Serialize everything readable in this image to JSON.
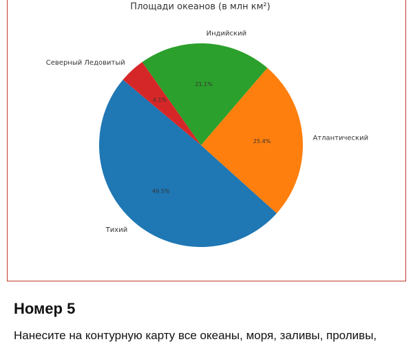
{
  "chart_data": {
    "type": "pie",
    "title": "Площади океанов (в млн км²)",
    "categories": [
      "Тихий",
      "Атлантический",
      "Индийский",
      "Северный Ледовитый"
    ],
    "values": [
      49.5,
      25.4,
      21.1,
      4.1
    ],
    "value_labels": [
      "49.5%",
      "25.4%",
      "21.1%",
      "4.1%"
    ],
    "colors": [
      "#1f77b4",
      "#ff7f0e",
      "#2ca02c",
      "#d62728"
    ],
    "start_angle": 140
  },
  "heading": "Номер 5",
  "text": "Нанесите на контурную карту все океаны, моря, заливы, проливы,"
}
